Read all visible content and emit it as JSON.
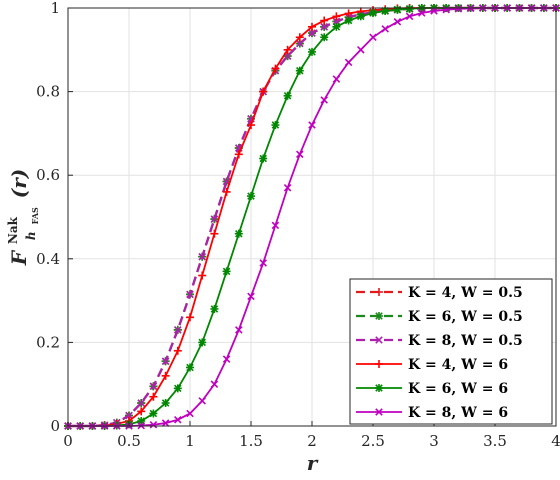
{
  "chart_data": {
    "type": "line",
    "x_label": "r",
    "y_label_main": "F",
    "y_label_superscript": "Nak",
    "y_label_subscript_main": "h",
    "y_label_subscript_small": "FAS",
    "y_label_arg": "(r)",
    "x_range": [
      0,
      4
    ],
    "y_range": [
      0,
      1
    ],
    "x_ticks": [
      "0",
      "0.5",
      "1",
      "1.5",
      "2",
      "2.5",
      "3",
      "3.5",
      "4"
    ],
    "y_ticks": [
      "0",
      "0.2",
      "0.4",
      "0.6",
      "0.8",
      "1"
    ],
    "grid": true,
    "legend_position": "bottom-right",
    "x": [
      0,
      0.1,
      0.2,
      0.3,
      0.4,
      0.5,
      0.6,
      0.7,
      0.8,
      0.9,
      1.0,
      1.1,
      1.2,
      1.3,
      1.4,
      1.5,
      1.6,
      1.7,
      1.8,
      1.9,
      2.0,
      2.1,
      2.2,
      2.3,
      2.4,
      2.5,
      2.6,
      2.7,
      2.8,
      2.9,
      3.0,
      3.1,
      3.2,
      3.3,
      3.4,
      3.5,
      3.6,
      3.7,
      3.8,
      3.9,
      4.0
    ],
    "series": [
      {
        "name": "K = 4, W = 0.5",
        "color": "#e41a1c",
        "marker": "plus",
        "dashed": true,
        "values": [
          0,
          0,
          0,
          0.002,
          0.008,
          0.025,
          0.055,
          0.095,
          0.155,
          0.23,
          0.315,
          0.405,
          0.495,
          0.585,
          0.665,
          0.735,
          0.8,
          0.85,
          0.885,
          0.915,
          0.94,
          0.955,
          0.968,
          0.978,
          0.985,
          0.99,
          0.993,
          0.996,
          0.998,
          0.999,
          1,
          1,
          1,
          1,
          1,
          1,
          1,
          1,
          1,
          1,
          1
        ]
      },
      {
        "name": "K = 6, W = 0.5",
        "color": "#1a8a1a",
        "marker": "star",
        "dashed": true,
        "values": [
          0,
          0,
          0,
          0.002,
          0.008,
          0.025,
          0.055,
          0.095,
          0.155,
          0.23,
          0.315,
          0.405,
          0.495,
          0.585,
          0.665,
          0.735,
          0.8,
          0.85,
          0.885,
          0.915,
          0.94,
          0.955,
          0.968,
          0.978,
          0.985,
          0.99,
          0.993,
          0.996,
          0.998,
          0.999,
          1,
          1,
          1,
          1,
          1,
          1,
          1,
          1,
          1,
          1,
          1
        ]
      },
      {
        "name": "K = 8, W = 0.5",
        "color": "#b020b0",
        "marker": "x",
        "dashed": true,
        "values": [
          0,
          0,
          0,
          0.002,
          0.008,
          0.025,
          0.055,
          0.095,
          0.155,
          0.23,
          0.315,
          0.405,
          0.495,
          0.585,
          0.665,
          0.735,
          0.8,
          0.85,
          0.885,
          0.915,
          0.94,
          0.955,
          0.968,
          0.978,
          0.985,
          0.99,
          0.993,
          0.996,
          0.998,
          0.999,
          1,
          1,
          1,
          1,
          1,
          1,
          1,
          1,
          1,
          1,
          1
        ]
      },
      {
        "name": "K = 4, W = 6",
        "color": "#ff0000",
        "marker": "plus",
        "dashed": false,
        "values": [
          0,
          0,
          0,
          0.001,
          0.005,
          0.012,
          0.035,
          0.07,
          0.12,
          0.18,
          0.26,
          0.36,
          0.46,
          0.56,
          0.65,
          0.72,
          0.8,
          0.855,
          0.9,
          0.93,
          0.955,
          0.97,
          0.98,
          0.987,
          0.992,
          0.995,
          0.997,
          0.999,
          1,
          1,
          1,
          1,
          1,
          1,
          1,
          1,
          1,
          1,
          1,
          1,
          1
        ]
      },
      {
        "name": "K = 6, W = 6",
        "color": "#008800",
        "marker": "star",
        "dashed": false,
        "values": [
          0,
          0,
          0,
          0,
          0.001,
          0.004,
          0.012,
          0.03,
          0.055,
          0.09,
          0.14,
          0.2,
          0.28,
          0.37,
          0.46,
          0.55,
          0.64,
          0.72,
          0.79,
          0.85,
          0.895,
          0.93,
          0.955,
          0.97,
          0.98,
          0.988,
          0.993,
          0.996,
          0.998,
          1,
          1,
          1,
          1,
          1,
          1,
          1,
          1,
          1,
          1,
          1,
          1
        ]
      },
      {
        "name": "K = 8, W = 6",
        "color": "#c000c0",
        "marker": "x",
        "dashed": false,
        "values": [
          0,
          0,
          0,
          0,
          0,
          0,
          0.001,
          0.003,
          0.007,
          0.015,
          0.03,
          0.06,
          0.1,
          0.16,
          0.23,
          0.31,
          0.39,
          0.48,
          0.57,
          0.65,
          0.72,
          0.78,
          0.83,
          0.87,
          0.9,
          0.93,
          0.95,
          0.967,
          0.98,
          0.988,
          0.993,
          0.996,
          0.998,
          0.999,
          1,
          1,
          1,
          1,
          1,
          1,
          1
        ]
      }
    ]
  }
}
